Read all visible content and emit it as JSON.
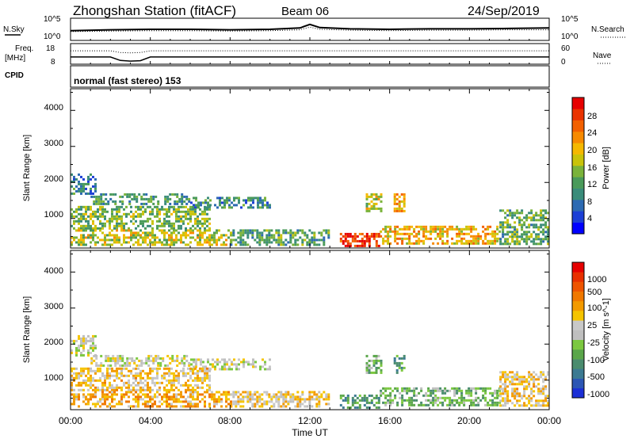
{
  "header": {
    "station": "Zhongshan Station (fitACF)",
    "beam": "Beam 06",
    "date": "24/Sep/2019"
  },
  "strips": {
    "nsky_label": "N.Sky",
    "nsky_ticks": [
      "10^5",
      "10^0"
    ],
    "nsearch_label": "N.Search",
    "nsearch_ticks": [
      "10^5",
      "10^0"
    ],
    "freq_label_1": "Freq.",
    "freq_label_2": "[MHz]",
    "freq_ticks": [
      "18",
      "8"
    ],
    "nave_label": "Nave",
    "nave_ticks": [
      "60",
      "0"
    ],
    "cpid_label": "CPID",
    "cpid_text": "normal (fast stereo) 153"
  },
  "panels": {
    "ylabel": "Slant Range [km]",
    "ytick_labels": [
      "4000",
      "3000",
      "2000",
      "1000"
    ],
    "xtick_labels": [
      "00:00",
      "04:00",
      "08:00",
      "12:00",
      "16:00",
      "20:00",
      "00:00"
    ],
    "xlabel": "Time UT"
  },
  "colorbars": {
    "power": {
      "label": "Power [dB]",
      "tick_labels": [
        "28",
        "24",
        "20",
        "16",
        "12",
        "8",
        "4"
      ],
      "colors": [
        "#0000ff",
        "#1c3fd6",
        "#2d6ab2",
        "#3a8c7a",
        "#4a9a5a",
        "#7ab33a",
        "#c9c30a",
        "#f5b800",
        "#f78a00",
        "#f26000",
        "#ea3300",
        "#e60000"
      ]
    },
    "velocity": {
      "label": "Velocity [m s^-1]",
      "tick_labels": [
        "1000",
        "500",
        "100",
        "25",
        "-25",
        "-100",
        "-500",
        "-1000"
      ],
      "colors": [
        "#1b2fd6",
        "#2c56b4",
        "#3c7a92",
        "#4a8c6e",
        "#5aa64a",
        "#7cc840",
        "#bfbfbf",
        "#c8c8c8",
        "#f5c400",
        "#f39a00",
        "#f07800",
        "#ee5400",
        "#e83000",
        "#e60000"
      ]
    }
  },
  "chart_data": [
    {
      "type": "line",
      "title": "N.Sky / N.Search",
      "x": [
        0,
        2,
        4,
        6,
        8,
        10,
        11.5,
        12,
        12.5,
        14,
        16,
        18,
        20,
        22,
        24
      ],
      "series": [
        {
          "name": "N.Sky",
          "values": [
            2.2,
            2.4,
            2.5,
            2.5,
            2.4,
            2.5,
            2.8,
            3.6,
            2.9,
            2.6,
            2.5,
            2.6,
            2.6,
            2.7,
            2.8
          ]
        },
        {
          "name": "N.Search",
          "values": [
            2.0,
            2.1,
            2.2,
            2.2,
            2.1,
            2.2,
            2.4,
            3.0,
            2.5,
            2.3,
            2.2,
            2.3,
            2.3,
            2.4,
            2.4
          ]
        }
      ],
      "ylim": [
        0,
        5
      ]
    },
    {
      "type": "line",
      "title": "Freq. / Nave",
      "x": [
        0,
        2,
        2.5,
        3,
        3.5,
        4,
        6,
        8,
        12,
        16,
        20,
        24
      ],
      "series": [
        {
          "name": "Freq.",
          "values": [
            11.5,
            11.5,
            9.8,
            9.5,
            9.7,
            11.5,
            11.5,
            11.5,
            11.5,
            11.5,
            11.5,
            11.5
          ]
        },
        {
          "name": "Nave",
          "values": [
            39,
            39,
            34,
            33,
            34,
            39,
            39,
            39,
            39,
            39,
            39,
            39
          ]
        }
      ],
      "ylim": [
        8,
        18
      ]
    },
    {
      "type": "heatmap",
      "title": "Power [dB]",
      "xlabel": "Time UT",
      "ylabel": "Slant Range [km]",
      "xlim": [
        0,
        24
      ],
      "ylim": [
        180,
        4600
      ],
      "clim": [
        0,
        30
      ],
      "grid": false,
      "regions": [
        {
          "t": [
            0.0,
            1.2
          ],
          "r": [
            1700,
            2250
          ],
          "value": 8
        },
        {
          "t": [
            1.0,
            6.0
          ],
          "r": [
            1400,
            1700
          ],
          "value": 10
        },
        {
          "t": [
            6.0,
            10.0
          ],
          "r": [
            1300,
            1600
          ],
          "value": 9
        },
        {
          "t": [
            0.0,
            7.0
          ],
          "r": [
            700,
            1350
          ],
          "value": 13
        },
        {
          "t": [
            0.0,
            8.0
          ],
          "r": [
            250,
            700
          ],
          "value": 16
        },
        {
          "t": [
            8.0,
            13.0
          ],
          "r": [
            250,
            700
          ],
          "value": 11
        },
        {
          "t": [
            13.5,
            15.5
          ],
          "r": [
            250,
            600
          ],
          "value": 27
        },
        {
          "t": [
            15.5,
            21.5
          ],
          "r": [
            300,
            800
          ],
          "value": 19
        },
        {
          "t": [
            21.5,
            24.0
          ],
          "r": [
            300,
            1250
          ],
          "value": 12
        },
        {
          "t": [
            14.8,
            15.6
          ],
          "r": [
            1200,
            1700
          ],
          "value": 17
        },
        {
          "t": [
            16.2,
            16.7
          ],
          "r": [
            1200,
            1700
          ],
          "value": 20
        }
      ]
    },
    {
      "type": "heatmap",
      "title": "Velocity [m s^-1]",
      "xlabel": "Time UT",
      "ylabel": "Slant Range [km]",
      "xlim": [
        0,
        24
      ],
      "ylim": [
        180,
        4600
      ],
      "clim": [
        -1000,
        1000
      ],
      "grid": false,
      "regions": [
        {
          "t": [
            0.0,
            1.2
          ],
          "r": [
            1700,
            2250
          ],
          "value": 0
        },
        {
          "t": [
            1.0,
            6.0
          ],
          "r": [
            1400,
            1700
          ],
          "value": 0
        },
        {
          "t": [
            6.0,
            10.0
          ],
          "r": [
            1300,
            1600
          ],
          "value": 0
        },
        {
          "t": [
            0.0,
            7.0
          ],
          "r": [
            700,
            1350
          ],
          "value": 200
        },
        {
          "t": [
            0.0,
            8.0
          ],
          "r": [
            250,
            700
          ],
          "value": 300
        },
        {
          "t": [
            8.0,
            13.0
          ],
          "r": [
            250,
            700
          ],
          "value": 150
        },
        {
          "t": [
            13.5,
            15.5
          ],
          "r": [
            250,
            600
          ],
          "value": -450
        },
        {
          "t": [
            15.5,
            21.5
          ],
          "r": [
            300,
            800
          ],
          "value": -300
        },
        {
          "t": [
            21.5,
            24.0
          ],
          "r": [
            300,
            1250
          ],
          "value": 200
        },
        {
          "t": [
            14.8,
            15.6
          ],
          "r": [
            1200,
            1700
          ],
          "value": -300
        },
        {
          "t": [
            16.2,
            16.7
          ],
          "r": [
            1200,
            1700
          ],
          "value": -400
        }
      ]
    }
  ]
}
